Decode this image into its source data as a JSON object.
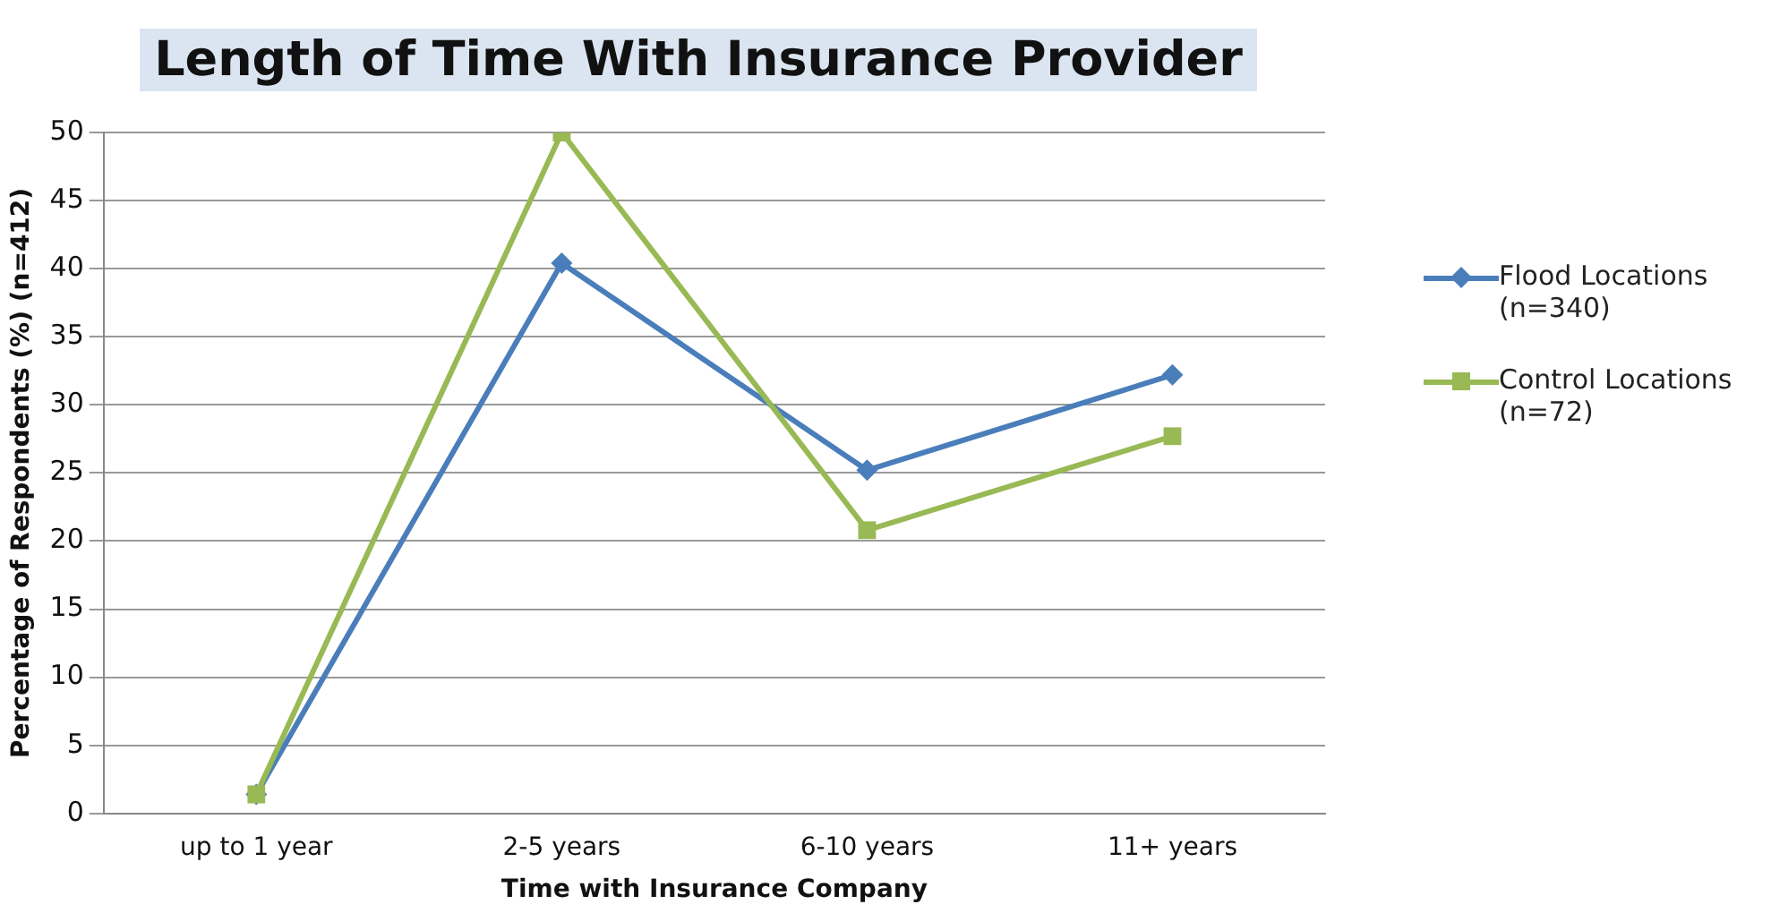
{
  "chart_data": {
    "type": "line",
    "title": "Length of Time With Insurance Provider",
    "xlabel": "Time with Insurance Company",
    "ylabel": "Percentage of Respondents (%) (n=412)",
    "categories": [
      "up to 1 year",
      "2-5 years",
      "6-10 years",
      "11+ years"
    ],
    "series": [
      {
        "name": "Flood Locations (n=340)",
        "color": "#4a7ebb",
        "marker": "diamond",
        "values": [
          1.4,
          40.4,
          25.2,
          32.2
        ]
      },
      {
        "name": "Control Locations (n=72)",
        "color": "#98b954",
        "marker": "square",
        "values": [
          1.4,
          50,
          20.8,
          27.7
        ]
      }
    ],
    "ylim": [
      0,
      50
    ],
    "yticks": [
      0,
      5,
      10,
      15,
      20,
      25,
      30,
      35,
      40,
      45,
      50
    ],
    "grid": "y",
    "legend": "right"
  }
}
